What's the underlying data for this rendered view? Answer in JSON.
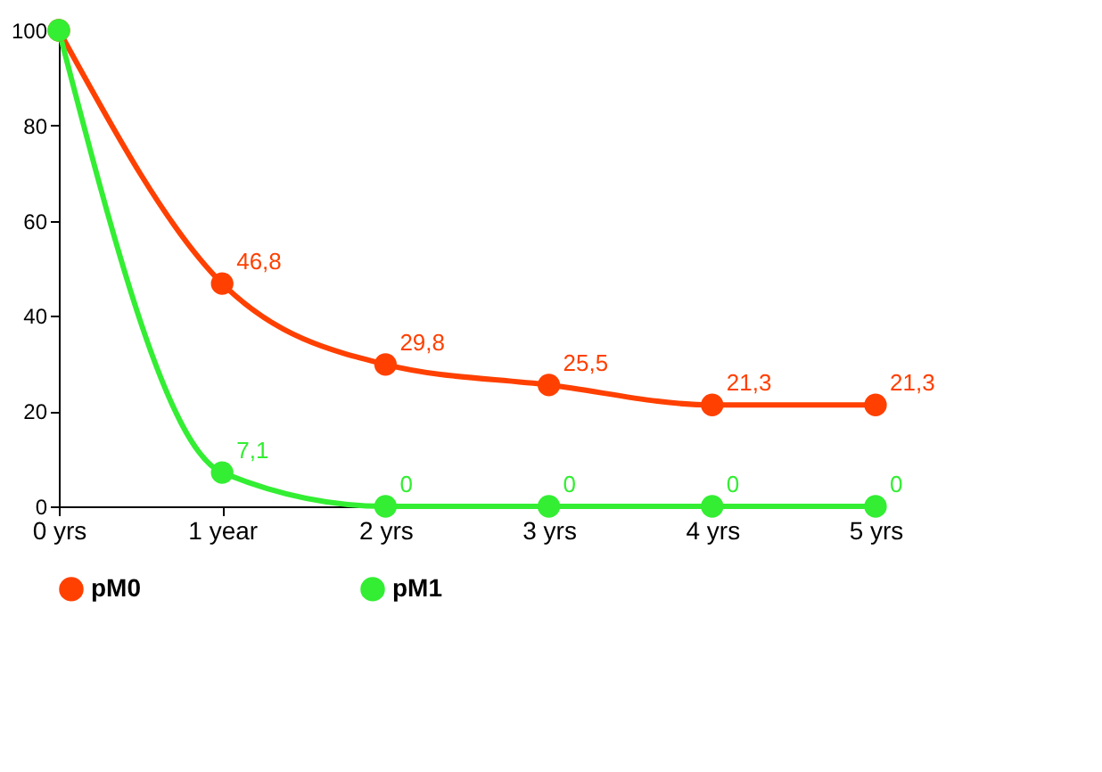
{
  "chart_data": {
    "type": "line",
    "categories": [
      "0 yrs",
      "1 year",
      "2 yrs",
      "3 yrs",
      "4 yrs",
      "5 yrs"
    ],
    "series": [
      {
        "name": "pM0",
        "color": "#ff4000",
        "values": [
          100,
          46.8,
          29.8,
          25.5,
          21.3,
          21.3
        ],
        "value_labels": [
          null,
          "46,8",
          "29,8",
          "25,5",
          "21,3",
          "21,3"
        ]
      },
      {
        "name": "pM1",
        "color": "#33ee33",
        "values": [
          100,
          7.1,
          0,
          0,
          0,
          0
        ],
        "value_labels": [
          null,
          "7,1",
          "0",
          "0",
          "0",
          "0"
        ]
      }
    ],
    "ylim": [
      0,
      100
    ],
    "yticks": [
      0,
      20,
      40,
      60,
      80,
      100
    ],
    "grid": false,
    "legend": "bottom",
    "marker": "circle",
    "line_style": "solid"
  }
}
